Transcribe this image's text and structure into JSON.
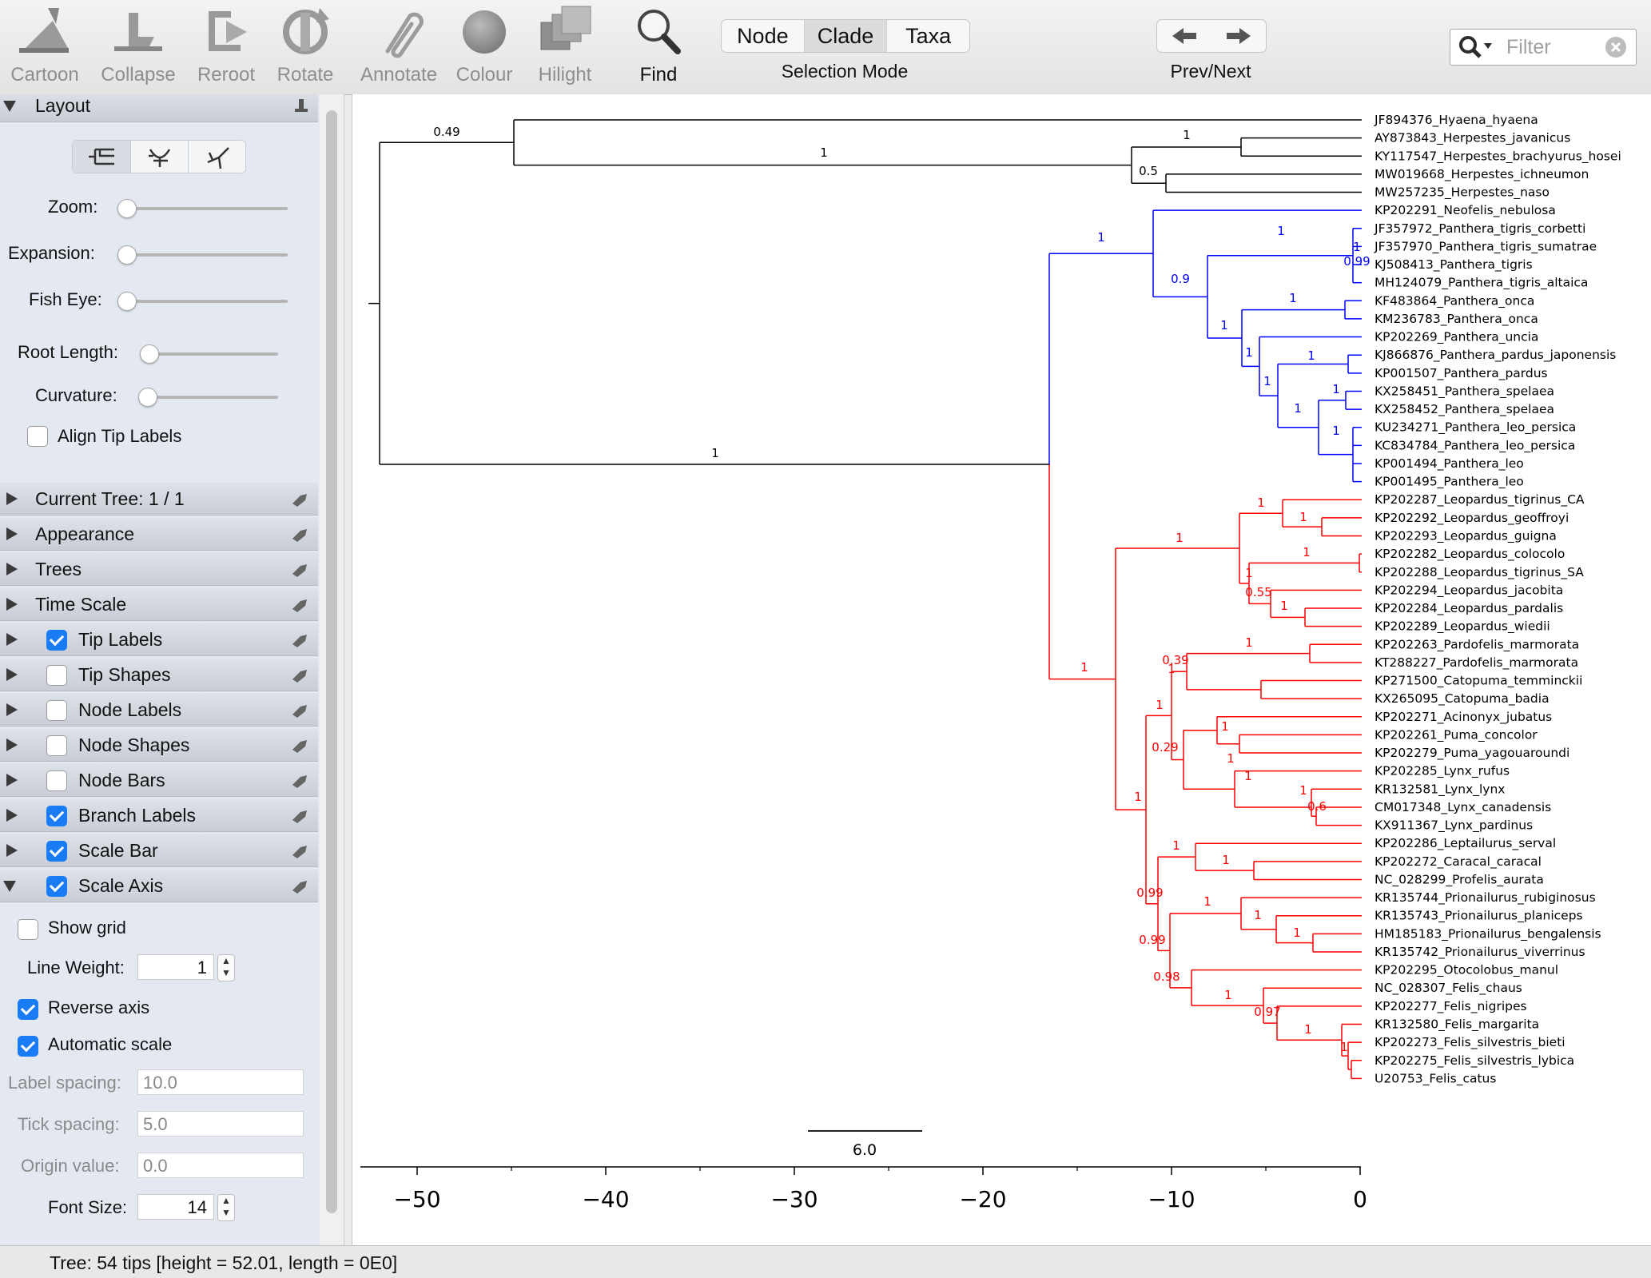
{
  "toolbar": {
    "tools": [
      {
        "id": "cartoon",
        "label": "Cartoon",
        "icon": "cartoon-icon",
        "active": false
      },
      {
        "id": "collapse",
        "label": "Collapse",
        "icon": "collapse-icon",
        "active": false
      },
      {
        "id": "reroot",
        "label": "Reroot",
        "icon": "reroot-icon",
        "active": false
      },
      {
        "id": "rotate",
        "label": "Rotate",
        "icon": "rotate-icon",
        "active": false
      },
      {
        "id": "annotate",
        "label": "Annotate",
        "icon": "paperclip-icon",
        "active": false
      },
      {
        "id": "colour",
        "label": "Colour",
        "icon": "colour-icon",
        "active": false
      },
      {
        "id": "hilight",
        "label": "Hilight",
        "icon": "hilight-icon",
        "active": false
      },
      {
        "id": "find",
        "label": "Find",
        "icon": "magnifier-icon",
        "active": true
      }
    ],
    "selection_mode": {
      "options": [
        "Node",
        "Clade",
        "Taxa"
      ],
      "selected": "Clade",
      "caption": "Selection Mode"
    },
    "prev_next": {
      "caption": "Prev/Next",
      "icons": [
        "arrow-left-icon",
        "arrow-right-icon"
      ]
    },
    "filter": {
      "placeholder": "Filter",
      "value": ""
    }
  },
  "panel": {
    "layout": {
      "title": "Layout",
      "expanded": true,
      "layout_types": [
        "rectilinear-layout-icon",
        "polar-layout-icon",
        "radial-layout-icon"
      ],
      "sliders": [
        {
          "label": "Zoom:",
          "value": 0
        },
        {
          "label": "Expansion:",
          "value": 0
        },
        {
          "label": "Fish Eye:",
          "value": 0
        },
        {
          "label": "Root Length:",
          "value": 0
        },
        {
          "label": "Curvature:",
          "value": 0
        }
      ],
      "align_tip_labels": {
        "label": "Align Tip Labels",
        "checked": false
      }
    },
    "sections": [
      {
        "label": "Current Tree: 1 / 1",
        "checkbox": null
      },
      {
        "label": "Appearance",
        "checkbox": null
      },
      {
        "label": "Trees",
        "checkbox": null
      },
      {
        "label": "Time Scale",
        "checkbox": null
      },
      {
        "label": "Tip Labels",
        "checkbox": true
      },
      {
        "label": "Tip Shapes",
        "checkbox": false
      },
      {
        "label": "Node Labels",
        "checkbox": false
      },
      {
        "label": "Node Shapes",
        "checkbox": false
      },
      {
        "label": "Node Bars",
        "checkbox": false
      },
      {
        "label": "Branch Labels",
        "checkbox": true
      },
      {
        "label": "Scale Bar",
        "checkbox": true
      },
      {
        "label": "Scale Axis",
        "checkbox": true,
        "expanded": true
      }
    ],
    "scale_axis": {
      "show_grid": {
        "label": "Show grid",
        "checked": false
      },
      "line_weight": {
        "label": "Line Weight:",
        "value": "1"
      },
      "reverse_axis": {
        "label": "Reverse axis",
        "checked": true
      },
      "automatic_scale": {
        "label": "Automatic scale",
        "checked": true
      },
      "label_spacing": {
        "label": "Label spacing:",
        "value": "10.0"
      },
      "tick_spacing": {
        "label": "Tick spacing:",
        "value": "5.0"
      },
      "origin_value": {
        "label": "Origin value:",
        "value": "0.0"
      },
      "font_size": {
        "label": "Font Size:",
        "value": "14"
      }
    }
  },
  "tree": {
    "colors": {
      "outgroup": "#000000",
      "pantherinae": "#0000ff",
      "felinae": "#ff0000"
    },
    "tips": [
      "JF894376_Hyaena_hyaena",
      "AY873843_Herpestes_javanicus",
      "KY117547_Herpestes_brachyurus_hosei",
      "MW019668_Herpestes_ichneumon",
      "MW257235_Herpestes_naso",
      "KP202291_Neofelis_nebulosa",
      "JF357972_Panthera_tigris_corbetti",
      "JF357970_Panthera_tigris_sumatrae",
      "KJ508413_Panthera_tigris",
      "MH124079_Panthera_tigris_altaica",
      "KF483864_Panthera_onca",
      "KM236783_Panthera_onca",
      "KP202269_Panthera_uncia",
      "KJ866876_Panthera_pardus_japonensis",
      "KP001507_Panthera_pardus",
      "KX258451_Panthera_spelaea",
      "KX258452_Panthera_spelaea",
      "KU234271_Panthera_leo_persica",
      "KC834784_Panthera_leo_persica",
      "KP001494_Panthera_leo",
      "KP001495_Panthera_leo",
      "KP202287_Leopardus_tigrinus_CA",
      "KP202292_Leopardus_geoffroyi",
      "KP202293_Leopardus_guigna",
      "KP202282_Leopardus_colocolo",
      "KP202288_Leopardus_tigrinus_SA",
      "KP202294_Leopardus_jacobita",
      "KP202284_Leopardus_pardalis",
      "KP202289_Leopardus_wiedii",
      "KP202263_Pardofelis_marmorata",
      "KT288227_Pardofelis_marmorata",
      "KP271500_Catopuma_temminckii",
      "KX265095_Catopuma_badia",
      "KP202271_Acinonyx_jubatus",
      "KP202261_Puma_concolor",
      "KP202279_Puma_yagouaroundi",
      "KP202285_Lynx_rufus",
      "KR132581_Lynx_lynx",
      "CM017348_Lynx_canadensis",
      "KX911367_Lynx_pardinus",
      "KP202286_Leptailurus_serval",
      "KP202272_Caracal_caracal",
      "NC_028299_Profelis_aurata",
      "KR135744_Prionailurus_rubiginosus",
      "KR135743_Prionailurus_planiceps",
      "HM185183_Prionailurus_bengalensis",
      "KR135742_Prionailurus_viverrinus",
      "KP202295_Otocolobus_manul",
      "NC_028307_Felis_chaus",
      "KP202277_Felis_nigripes",
      "KR132580_Felis_margarita",
      "KP202273_Felis_silvestris_bieti",
      "KP202275_Felis_silvestris_lybica",
      "U20753_Felis_catus"
    ],
    "branch_labels": {
      "outgroup": [
        "0.49",
        "1",
        "1",
        "0.5"
      ],
      "root": [
        "1"
      ],
      "pantherinae": [
        "1",
        "1",
        "1",
        "0.99",
        "0.9",
        "1",
        "1",
        "1",
        "1",
        "1",
        "1",
        "1",
        "1"
      ],
      "felinae": [
        "1",
        "1",
        "1",
        "1",
        "1",
        "1",
        "0.55",
        "1",
        "1",
        "0.39",
        "1",
        "1",
        "1",
        "1",
        "0.29",
        "1",
        "1",
        "0.6",
        "1",
        "1",
        "1",
        "0.99",
        "1",
        "1",
        "0.99",
        "1",
        "0.98",
        "1",
        "0.97",
        "1",
        "1"
      ]
    },
    "scale_bar": {
      "value": "6.0"
    },
    "axis": {
      "ticks": [
        "-50",
        "-40",
        "-30",
        "-20",
        "-10",
        "0"
      ],
      "reversed": true
    }
  },
  "status": {
    "text": "Tree: 54 tips [height = 52.01, length = 0E0]"
  }
}
